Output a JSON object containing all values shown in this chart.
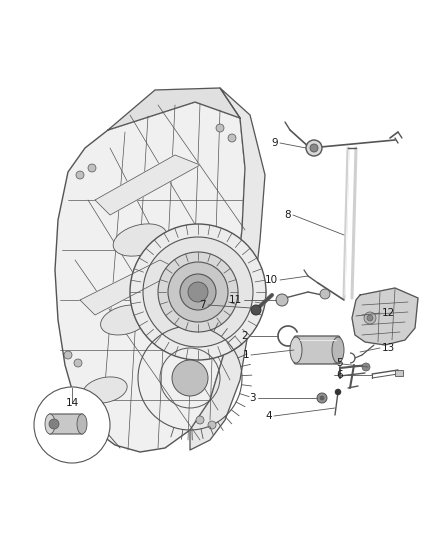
{
  "background_color": "#ffffff",
  "fig_width": 4.38,
  "fig_height": 5.33,
  "dpi": 100,
  "line_color": "#555555",
  "line_color_dark": "#333333",
  "fill_case": "#f5f5f5",
  "fill_med": "#d0d0d0",
  "fill_dark": "#a0a0a0",
  "label_fontsize": 7.5,
  "label_color": "#1a1a1a",
  "label_positions": {
    "1": [
      0.568,
      0.355,
      "right"
    ],
    "2": [
      0.53,
      0.392,
      "right"
    ],
    "3": [
      0.576,
      0.275,
      "right"
    ],
    "4": [
      0.618,
      0.263,
      "right"
    ],
    "5": [
      0.762,
      0.367,
      "left"
    ],
    "6": [
      0.762,
      0.345,
      "left"
    ],
    "7": [
      0.464,
      0.458,
      "right"
    ],
    "8": [
      0.666,
      0.647,
      "right"
    ],
    "9": [
      0.626,
      0.742,
      "right"
    ],
    "10": [
      0.626,
      0.526,
      "right"
    ],
    "11": [
      0.54,
      0.482,
      "right"
    ],
    "12": [
      0.87,
      0.518,
      "left"
    ],
    "13": [
      0.87,
      0.498,
      "left"
    ],
    "14": [
      0.148,
      0.196,
      "center"
    ]
  }
}
